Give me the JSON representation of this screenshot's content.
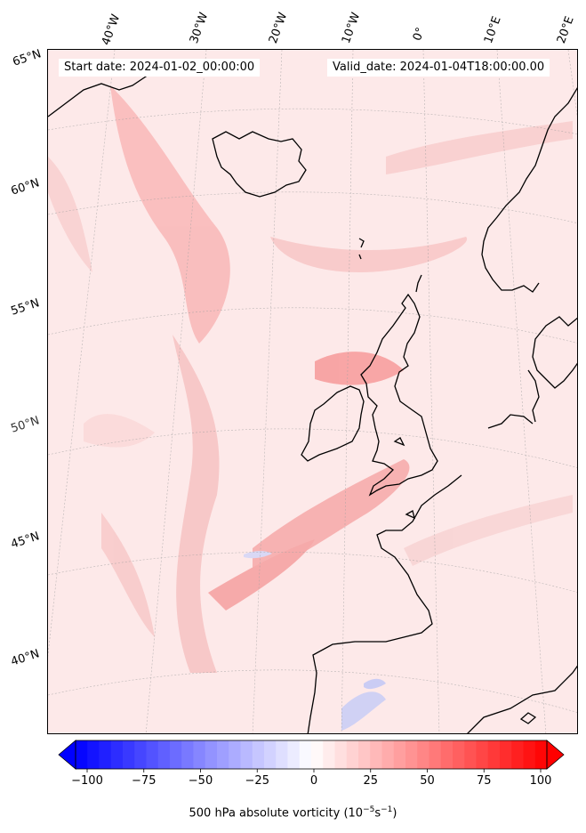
{
  "header": {
    "start_date": "Start date: 2024-01-02_00:00:00",
    "valid_date": "Valid_date: 2024-01-04T18:00:00.00"
  },
  "longitude_labels": [
    "40°W",
    "30°W",
    "20°W",
    "10°W",
    "0°",
    "10°E",
    "20°E"
  ],
  "latitude_labels": [
    "65°N",
    "60°N",
    "55°N",
    "50°N",
    "45°N",
    "40°N"
  ],
  "colorbar": {
    "ticks": [
      "−100",
      "−75",
      "−50",
      "−25",
      "0",
      "25",
      "50",
      "75",
      "100"
    ],
    "title_prefix": "500 hPa absolute vorticity (10",
    "title_exp1": "−5",
    "title_mid": "s",
    "title_exp2": "−1",
    "title_suffix": ")",
    "vmin": -100,
    "vmax": 100,
    "colors": {
      "negative": "#0000ff",
      "zero": "#ffffff",
      "positive": "#ff0000"
    }
  },
  "map": {
    "projection": "conic",
    "region": "North Atlantic / Western Europe",
    "land_outline_color": "#000000",
    "field_dominant_color": "#fde3e3"
  }
}
